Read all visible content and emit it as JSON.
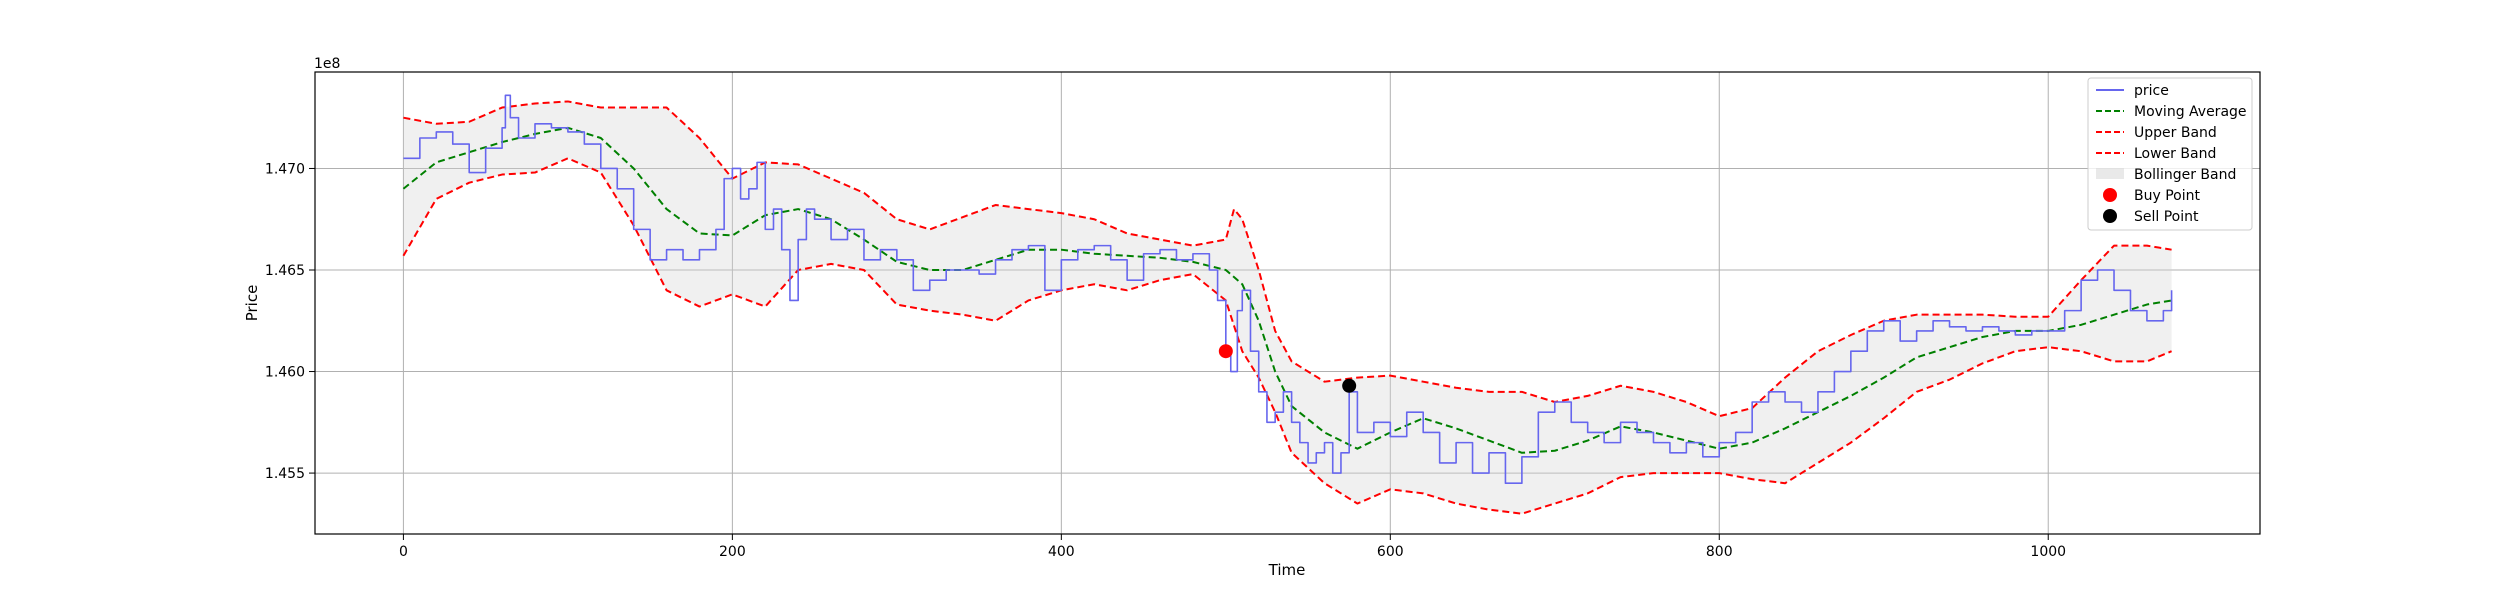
{
  "chart_data": {
    "type": "line",
    "xlabel": "Time",
    "ylabel": "Price",
    "y_offset_label": "1e8",
    "y_scale": 100000000,
    "xlim": [
      -53.75,
      1128.75
    ],
    "ylim": [
      1.452,
      1.47475
    ],
    "xticks": [
      0,
      200,
      400,
      600,
      800,
      1000
    ],
    "yticks": [
      1.455,
      1.46,
      1.465,
      1.47
    ],
    "ytick_labels": [
      "1.455",
      "1.460",
      "1.465",
      "1.470"
    ],
    "grid": true,
    "legend_position": "upper-right",
    "colors": {
      "price": "#6666ee",
      "moving_average": "#008000",
      "bands": "#ff0000",
      "band_fill": "#d3d3d3",
      "buy": "#ff0000",
      "sell": "#000000",
      "grid": "#b0b0b0",
      "axes": "#000000"
    },
    "series": [
      {
        "name": "price",
        "style": "solid",
        "x": [
          0,
          10,
          20,
          30,
          40,
          50,
          60,
          62,
          65,
          70,
          80,
          90,
          100,
          110,
          120,
          130,
          140,
          150,
          160,
          170,
          180,
          190,
          195,
          200,
          205,
          210,
          215,
          220,
          225,
          230,
          235,
          240,
          245,
          250,
          260,
          270,
          280,
          290,
          300,
          310,
          320,
          330,
          340,
          350,
          360,
          370,
          380,
          390,
          400,
          410,
          420,
          430,
          440,
          450,
          460,
          470,
          480,
          490,
          495,
          500,
          503,
          507,
          510,
          515,
          520,
          525,
          530,
          535,
          540,
          545,
          550,
          555,
          560,
          565,
          570,
          575,
          580,
          590,
          600,
          610,
          620,
          630,
          640,
          650,
          660,
          670,
          680,
          690,
          700,
          710,
          720,
          730,
          740,
          750,
          760,
          770,
          780,
          790,
          800,
          810,
          820,
          830,
          840,
          850,
          860,
          870,
          880,
          890,
          900,
          910,
          920,
          930,
          940,
          950,
          960,
          970,
          980,
          990,
          1000,
          1010,
          1020,
          1030,
          1040,
          1050,
          1060,
          1070,
          1075
        ],
        "y": [
          1.4705,
          1.4715,
          1.4718,
          1.4712,
          1.4698,
          1.471,
          1.472,
          1.4736,
          1.4725,
          1.4715,
          1.4722,
          1.472,
          1.4718,
          1.4712,
          1.47,
          1.469,
          1.467,
          1.4655,
          1.466,
          1.4655,
          1.466,
          1.467,
          1.4695,
          1.47,
          1.4685,
          1.469,
          1.4703,
          1.467,
          1.468,
          1.466,
          1.4635,
          1.4665,
          1.468,
          1.4675,
          1.4665,
          1.467,
          1.4655,
          1.466,
          1.4655,
          1.464,
          1.4645,
          1.465,
          1.465,
          1.4648,
          1.4655,
          1.466,
          1.4662,
          1.464,
          1.4655,
          1.466,
          1.4662,
          1.4655,
          1.4645,
          1.4658,
          1.466,
          1.4655,
          1.4658,
          1.465,
          1.4635,
          1.461,
          1.46,
          1.463,
          1.464,
          1.461,
          1.459,
          1.4575,
          1.458,
          1.459,
          1.4575,
          1.4565,
          1.4555,
          1.456,
          1.4565,
          1.455,
          1.456,
          1.459,
          1.457,
          1.4575,
          1.4568,
          1.458,
          1.457,
          1.4555,
          1.4565,
          1.455,
          1.456,
          1.4545,
          1.4558,
          1.458,
          1.4585,
          1.4575,
          1.457,
          1.4565,
          1.4575,
          1.457,
          1.4565,
          1.456,
          1.4565,
          1.4558,
          1.4565,
          1.457,
          1.4585,
          1.459,
          1.4585,
          1.458,
          1.459,
          1.46,
          1.461,
          1.462,
          1.4625,
          1.4615,
          1.462,
          1.4625,
          1.4622,
          1.462,
          1.4622,
          1.462,
          1.4618,
          1.462,
          1.462,
          1.463,
          1.4645,
          1.465,
          1.464,
          1.463,
          1.4625,
          1.463,
          1.464
        ]
      },
      {
        "name": "Moving Average",
        "style": "dashed",
        "x": [
          0,
          20,
          40,
          60,
          80,
          100,
          120,
          140,
          160,
          180,
          200,
          220,
          240,
          260,
          280,
          300,
          320,
          340,
          360,
          380,
          400,
          420,
          440,
          460,
          480,
          500,
          510,
          520,
          530,
          540,
          560,
          580,
          600,
          620,
          640,
          660,
          680,
          700,
          720,
          740,
          760,
          780,
          800,
          820,
          840,
          860,
          880,
          900,
          920,
          940,
          960,
          980,
          1000,
          1020,
          1040,
          1060,
          1075
        ],
        "y": [
          1.469,
          1.4703,
          1.4708,
          1.4713,
          1.4717,
          1.472,
          1.4715,
          1.47,
          1.468,
          1.4668,
          1.4667,
          1.4677,
          1.468,
          1.4675,
          1.4665,
          1.4654,
          1.465,
          1.465,
          1.4655,
          1.466,
          1.466,
          1.4658,
          1.4657,
          1.4656,
          1.4654,
          1.465,
          1.4643,
          1.4625,
          1.46,
          1.4583,
          1.457,
          1.4562,
          1.457,
          1.4577,
          1.4572,
          1.4566,
          1.456,
          1.4561,
          1.4566,
          1.4573,
          1.457,
          1.4566,
          1.4562,
          1.4565,
          1.4572,
          1.458,
          1.4588,
          1.4597,
          1.4607,
          1.4612,
          1.4617,
          1.462,
          1.462,
          1.4623,
          1.4628,
          1.4633,
          1.4635
        ]
      },
      {
        "name": "Upper Band",
        "style": "dashed",
        "x": [
          0,
          20,
          40,
          60,
          80,
          100,
          120,
          140,
          160,
          180,
          200,
          220,
          240,
          260,
          280,
          300,
          320,
          340,
          360,
          380,
          400,
          420,
          440,
          460,
          480,
          500,
          505,
          510,
          520,
          530,
          540,
          560,
          580,
          600,
          620,
          640,
          660,
          680,
          700,
          720,
          740,
          760,
          780,
          800,
          820,
          840,
          860,
          880,
          900,
          920,
          940,
          960,
          980,
          1000,
          1020,
          1040,
          1060,
          1075
        ],
        "y": [
          1.4725,
          1.4722,
          1.4723,
          1.473,
          1.4732,
          1.4733,
          1.473,
          1.473,
          1.473,
          1.4715,
          1.4695,
          1.4703,
          1.4702,
          1.4695,
          1.4688,
          1.4675,
          1.467,
          1.4676,
          1.4682,
          1.468,
          1.4678,
          1.4675,
          1.4668,
          1.4665,
          1.4662,
          1.4665,
          1.468,
          1.4675,
          1.465,
          1.462,
          1.4605,
          1.4595,
          1.4597,
          1.4598,
          1.4595,
          1.4592,
          1.459,
          1.459,
          1.4585,
          1.4588,
          1.4593,
          1.459,
          1.4585,
          1.4578,
          1.4582,
          1.4597,
          1.461,
          1.4618,
          1.4625,
          1.4628,
          1.4628,
          1.4628,
          1.4627,
          1.4627,
          1.4645,
          1.4662,
          1.4662,
          1.466
        ]
      },
      {
        "name": "Lower Band",
        "style": "dashed",
        "x": [
          0,
          20,
          40,
          60,
          80,
          100,
          120,
          140,
          160,
          180,
          200,
          220,
          240,
          260,
          280,
          300,
          320,
          340,
          360,
          380,
          400,
          420,
          440,
          460,
          480,
          500,
          510,
          520,
          530,
          540,
          560,
          580,
          600,
          620,
          640,
          660,
          680,
          700,
          720,
          740,
          760,
          780,
          800,
          820,
          840,
          860,
          880,
          900,
          920,
          940,
          960,
          980,
          1000,
          1020,
          1040,
          1060,
          1075
        ],
        "y": [
          1.4657,
          1.4685,
          1.4693,
          1.4697,
          1.4698,
          1.4705,
          1.4698,
          1.4672,
          1.464,
          1.4632,
          1.4638,
          1.4632,
          1.465,
          1.4653,
          1.465,
          1.4633,
          1.463,
          1.4628,
          1.4625,
          1.4635,
          1.464,
          1.4643,
          1.464,
          1.4645,
          1.4648,
          1.4635,
          1.461,
          1.4597,
          1.458,
          1.456,
          1.4545,
          1.4535,
          1.4542,
          1.454,
          1.4535,
          1.4532,
          1.453,
          1.4535,
          1.454,
          1.4548,
          1.455,
          1.455,
          1.455,
          1.4547,
          1.4545,
          1.4555,
          1.4565,
          1.4577,
          1.459,
          1.4596,
          1.4604,
          1.461,
          1.4612,
          1.461,
          1.4605,
          1.4605,
          1.461
        ]
      }
    ],
    "bollinger_band": {
      "name": "Bollinger Band"
    },
    "markers": [
      {
        "name": "Buy Point",
        "x": 500,
        "y": 1.461
      },
      {
        "name": "Sell Point",
        "x": 575,
        "y": 1.4593
      }
    ],
    "legend": [
      "price",
      "Moving Average",
      "Upper Band",
      "Lower Band",
      "Bollinger Band",
      "Buy Point",
      "Sell Point"
    ]
  }
}
